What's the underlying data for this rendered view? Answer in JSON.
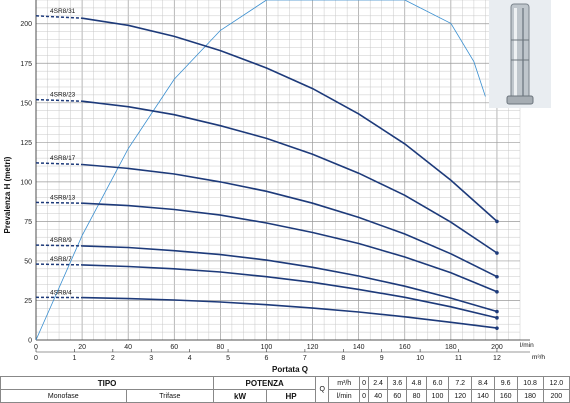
{
  "chart_data": {
    "type": "line",
    "xlabel": "Portata Q",
    "ylabel": "Prevalenza H (metri)",
    "x_unit_bottom": "l/min",
    "x_unit_top": "m³/h",
    "xlim": [
      0,
      210
    ],
    "ylim": [
      0,
      215
    ],
    "x_ticks_lmin": [
      "0",
      "20",
      "40",
      "60",
      "80",
      "100",
      "120",
      "140",
      "160",
      "180",
      "200"
    ],
    "x_ticks_m3h": [
      "0",
      "1",
      "2",
      "3",
      "4",
      "5",
      "6",
      "7",
      "8",
      "9",
      "10",
      "11",
      "12"
    ],
    "y_ticks": [
      "0",
      "25",
      "50",
      "75",
      "100",
      "125",
      "150",
      "175",
      "200"
    ],
    "series": [
      {
        "name": "4SR8/31",
        "x": [
          0,
          20,
          40,
          60,
          80,
          100,
          120,
          140,
          160,
          180,
          200
        ],
        "y": [
          205,
          203.5,
          199,
          192,
          183,
          172,
          159,
          143,
          124,
          101,
          75
        ]
      },
      {
        "name": "4SR8/23",
        "x": [
          0,
          20,
          40,
          60,
          80,
          100,
          120,
          140,
          160,
          180,
          200
        ],
        "y": [
          152,
          151,
          147.5,
          142.5,
          135.5,
          127.5,
          117.5,
          105.5,
          91.5,
          74.5,
          55
        ]
      },
      {
        "name": "4SR8/17",
        "x": [
          0,
          20,
          40,
          60,
          80,
          100,
          120,
          140,
          160,
          180,
          200
        ],
        "y": [
          112,
          111,
          108.5,
          105,
          100,
          94,
          86.5,
          77.5,
          67,
          54.5,
          40
        ]
      },
      {
        "name": "4SR8/13",
        "x": [
          0,
          20,
          40,
          60,
          80,
          100,
          120,
          140,
          160,
          180,
          200
        ],
        "y": [
          87,
          86.5,
          85,
          82.5,
          79,
          74,
          68,
          61,
          52.5,
          42.5,
          30.5
        ]
      },
      {
        "name": "4SR8/9",
        "x": [
          0,
          20,
          40,
          60,
          80,
          100,
          120,
          140,
          160,
          180,
          200
        ],
        "y": [
          60,
          59.5,
          58.5,
          56.5,
          54,
          50.5,
          46,
          40.5,
          34,
          26.5,
          18
        ]
      },
      {
        "name": "4SR8/7",
        "x": [
          0,
          20,
          40,
          60,
          80,
          100,
          120,
          140,
          160,
          180,
          200
        ],
        "y": [
          48,
          47.5,
          46.5,
          45,
          43,
          40,
          36.5,
          32,
          27,
          21,
          14
        ]
      },
      {
        "name": "4SR8/4",
        "x": [
          0,
          20,
          40,
          60,
          80,
          100,
          120,
          140,
          160,
          180,
          200
        ],
        "y": [
          27,
          26.8,
          26.2,
          25.3,
          24,
          22.3,
          20.2,
          17.7,
          14.7,
          11.2,
          7.5
        ]
      }
    ],
    "efficiency_curve": {
      "x": [
        0,
        20,
        40,
        60,
        80,
        100,
        120,
        140,
        160,
        180,
        190,
        195
      ],
      "y": [
        0,
        30,
        55,
        75,
        89,
        99,
        104,
        106,
        102,
        91,
        80,
        70
      ]
    },
    "grid": true
  },
  "table": {
    "tipo": "TIPO",
    "potenza": "POTENZA",
    "q_label": "Q",
    "m3h_unit": "m³/h",
    "lmin_unit": "l/min",
    "row1_values": [
      "0",
      "2.4",
      "3.6",
      "4.8",
      "6.0",
      "7.2",
      "8.4",
      "9.6",
      "10.8",
      "12.0"
    ],
    "row2_col1": "Monofase",
    "row2_col2": "Trifase",
    "kw": "kW",
    "hp": "HP",
    "row2_values": [
      "0",
      "40",
      "60",
      "80",
      "100",
      "120",
      "140",
      "160",
      "180",
      "200"
    ]
  }
}
